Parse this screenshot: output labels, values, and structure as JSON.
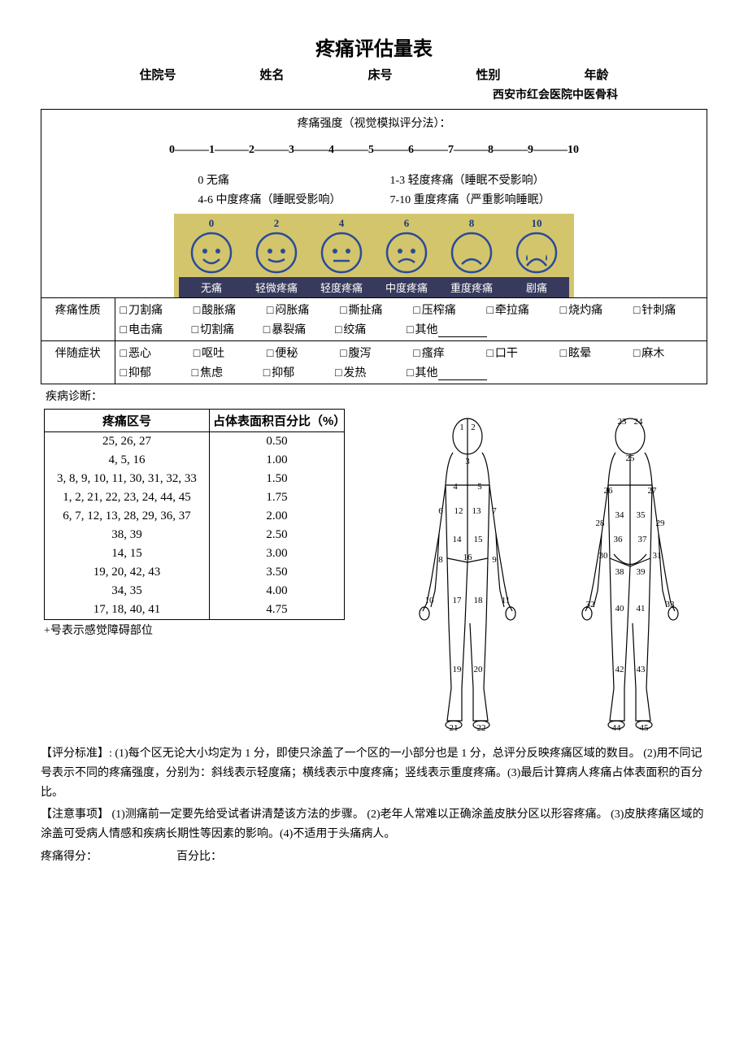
{
  "title": "疼痛评估量表",
  "header": {
    "fields": [
      "住院号",
      "姓名",
      "床号",
      "性别",
      "年龄"
    ],
    "hospital": "西安市红会医院中医骨科"
  },
  "intensity": {
    "section_title": "疼痛强度（视觉模拟评分法）：",
    "scale_labels": [
      "0",
      "1",
      "2",
      "3",
      "4",
      "5",
      "6",
      "7",
      "8",
      "9",
      "10"
    ],
    "legend_left": [
      "0 无痛",
      "4-6 中度疼痛（睡眠受影响）"
    ],
    "legend_right": [
      "1-3 轻度疼痛（睡眠不受影响）",
      "7-10 重度疼痛（严重影响睡眠）"
    ],
    "faces": {
      "numbers": [
        "0",
        "2",
        "4",
        "6",
        "8",
        "10"
      ],
      "labels": [
        "无痛",
        "轻微疼痛",
        "轻度疼痛",
        "中度疼痛",
        "重度疼痛",
        "剧痛"
      ],
      "face_color": "#2a4a9c",
      "bg_color": "#d3c56b",
      "label_bg": "#373a5c"
    }
  },
  "nature": {
    "label": "疼痛性质",
    "row1": [
      "刀割痛",
      "酸胀痛",
      "闷胀痛",
      "撕扯痛",
      "压榨痛",
      "牵拉痛",
      "烧灼痛",
      "针刺痛"
    ],
    "row2": [
      "电击痛",
      "切割痛",
      "暴裂痛",
      "绞痛",
      "其他"
    ]
  },
  "symptoms": {
    "label": "伴随症状",
    "row1": [
      "恶心",
      "呕吐",
      "便秘",
      "腹泻",
      "瘙痒",
      "口干",
      "眩晕",
      "麻木"
    ],
    "row2": [
      "抑郁",
      "焦虑",
      "抑郁",
      "发热",
      "其他"
    ]
  },
  "diagnosis_label": "疾病诊断：",
  "region_table": {
    "headers": [
      "疼痛区号",
      "占体表面积百分比（%）"
    ],
    "rows": [
      [
        "25, 26, 27",
        "0.50"
      ],
      [
        "4, 5, 16",
        "1.00"
      ],
      [
        "3, 8, 9, 10, 11, 30, 31, 32, 33",
        "1.50"
      ],
      [
        "1, 2, 21, 22, 23, 24, 44, 45",
        "1.75"
      ],
      [
        "6, 7, 12, 13, 28, 29, 36, 37",
        "2.00"
      ],
      [
        "38, 39",
        "2.50"
      ],
      [
        "14, 15",
        "3.00"
      ],
      [
        "19, 20, 42, 43",
        "3.50"
      ],
      [
        "34, 35",
        "4.00"
      ],
      [
        "17, 18, 40, 41",
        "4.75"
      ]
    ]
  },
  "plus_note": "+号表示感觉障碍部位",
  "body_regions": {
    "front": [
      "1",
      "2",
      "3",
      "4",
      "5",
      "6",
      "7",
      "8",
      "9",
      "10",
      "11",
      "12",
      "13",
      "14",
      "15",
      "16",
      "17",
      "18",
      "19",
      "20",
      "21",
      "22"
    ],
    "back": [
      "23",
      "24",
      "25",
      "26",
      "27",
      "28",
      "29",
      "30",
      "31",
      "32",
      "33",
      "34",
      "35",
      "36",
      "37",
      "38",
      "39",
      "40",
      "41",
      "42",
      "43",
      "44",
      "45"
    ]
  },
  "scoring_std": "【评分标准】: (1)每个区无论大小均定为 1 分，即使只涂盖了一个区的一小部分也是 1 分，总评分反映疼痛区域的数目。 (2)用不同记号表示不同的疼痛强度，分别为：斜线表示轻度痛；横线表示中度疼痛；竖线表示重度疼痛。(3)最后计算病人疼痛占体表面积的百分比。",
  "precautions": "【注意事项】 (1)测痛前一定要先给受试者讲清楚该方法的步骤。 (2)老年人常难以正确涂盖皮肤分区以形容疼痛。 (3)皮肤疼痛区域的涂盖可受病人情感和疾病长期性等因素的影响。(4)不适用于头痛病人。",
  "score_labels": {
    "score": "疼痛得分：",
    "pct": "百分比："
  }
}
